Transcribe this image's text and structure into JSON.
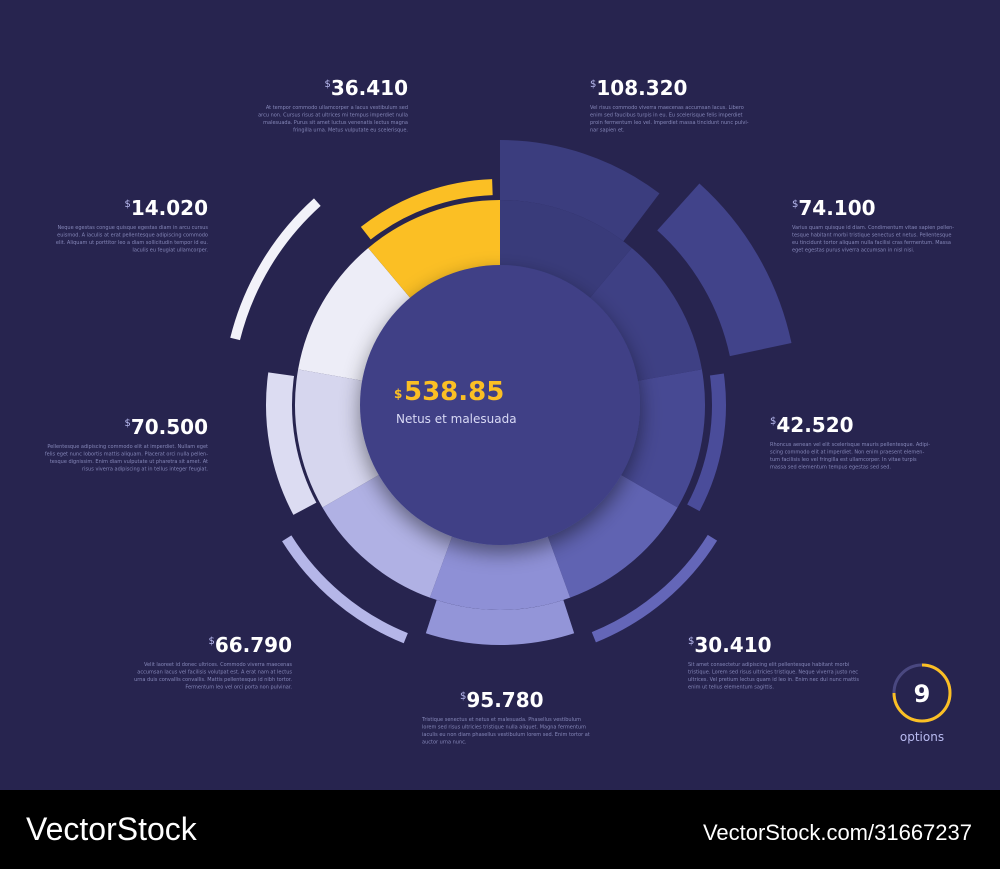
{
  "center": {
    "currency": "$",
    "value": "538.85",
    "label": "Netus et malesuada"
  },
  "items": [
    {
      "currency": "$",
      "value": "108.320",
      "text": [
        "Vel risus commodo viverra maecenas accumsan lacus. Libero",
        "enim sed faucibus turpis in eu. Eu scelerisque felis imperdiet",
        "proin fermentum leo vel. Imperdiet massa tincidunt nunc pulvi-",
        "nar sapien et."
      ]
    },
    {
      "currency": "$",
      "value": "74.100",
      "text": [
        "Varius quam quisque id diam. Condimentum vitae sapien pellen-",
        "tesque habitant morbi tristique senectus et netus. Pellentesque",
        "eu tincidunt tortor aliquam nulla facilisi cras fermentum. Massa",
        "eget egestas purus viverra accumsan in nisl nisi."
      ]
    },
    {
      "currency": "$",
      "value": "42.520",
      "text": [
        "Rhoncus aenean vel elit scelerisque mauris pellentesque. Adipi-",
        "scing commodo elit at imperdiet. Non enim praesent elemen-",
        "tum facilisis leo vel fringilla est ullamcorper. In vitae turpis",
        "massa sed elementum tempus egestas sed sed."
      ]
    },
    {
      "currency": "$",
      "value": "30.410",
      "text": [
        "Sit amet consectetur adipiscing elit pellentesque habitant morbi",
        "tristique. Lorem sed risus ultricies tristique. Neque viverra justo nec",
        "ultrices. Vel pretium lectus quam id leo in. Enim nec dui nunc mattis",
        "enim ut tellus elementum sagittis."
      ]
    },
    {
      "currency": "$",
      "value": "95.780",
      "text": [
        "Tristique senectus et netus et malesuada. Phasellus vestibulum",
        "lorem sed risus ultricies tristique nulla aliquet. Magna fermentum",
        "iaculis eu non diam phasellus vestibulum lorem sed. Enim tortor at",
        "auctor urna nunc."
      ]
    },
    {
      "currency": "$",
      "value": "66.790",
      "text": [
        "Velit laoreet id donec ultrices. Commodo viverra maecenas",
        "accumsan lacus vel facilisis volutpat est. A erat nam at lectus",
        "urna duis convallis convallis. Mattis pellentesque id nibh tortor.",
        "Fermentum leo vel orci porta non pulvinar."
      ]
    },
    {
      "currency": "$",
      "value": "70.500",
      "text": [
        "Pellentesque adipiscing commodo elit at imperdiet. Nullam eget",
        "felis eget nunc lobortis mattis aliquam. Placerat orci nulla pellen-",
        "tesque dignissim. Enim diam vulputate ut pharetra sit amet. At",
        "risus viverra adipiscing at in tellus integer feugiat."
      ]
    },
    {
      "currency": "$",
      "value": "14.020",
      "text": [
        "Neque egestas congue quisque egestas diam in arcu cursus",
        "euismod. A iaculis at erat pellentesque adipiscing commodo",
        "elit. Aliquam ut porttitor leo a diam sollicitudin tempor id eu.",
        "Iaculis eu feugiat ullamcorper."
      ]
    },
    {
      "currency": "$",
      "value": "36.410",
      "text": [
        "At tempor commodo ullamcorper a lacus vestibulum sed",
        "arcu non. Cursus risus at ultrices mi tempus imperdiet nulla",
        "malesuada. Purus sit amet luctus venenatis lectus magna",
        "fringilla urna. Metus vulputate eu scelerisque."
      ]
    }
  ],
  "badge": {
    "number": "9",
    "label": "options"
  },
  "footer": {
    "brand": "VectorStock",
    "id": "VectorStock.com/31667237"
  }
}
